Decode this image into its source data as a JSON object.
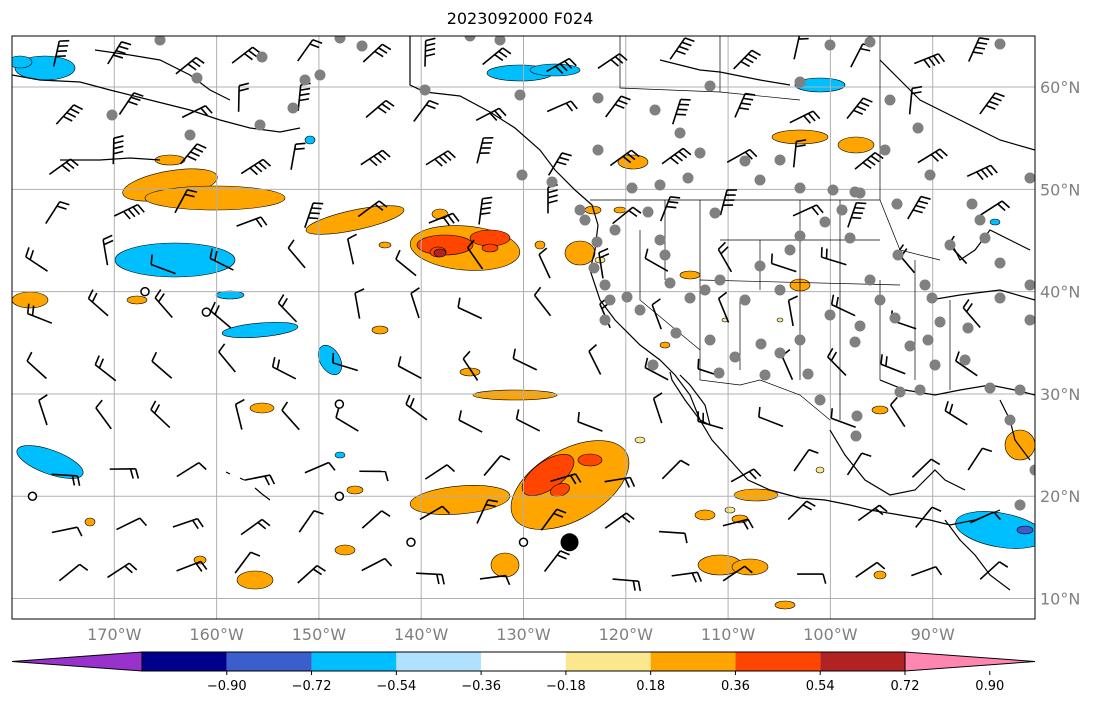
{
  "title": "2023092000 F024",
  "lon_labels": [
    "170°W",
    "160°W",
    "150°W",
    "140°W",
    "130°W",
    "120°W",
    "110°W",
    "100°W",
    "90°W"
  ],
  "lat_labels": [
    "60°N",
    "50°N",
    "40°N",
    "30°N",
    "20°N",
    "10°N"
  ],
  "colorbar": {
    "colors": [
      "#9932CC",
      "#00008B",
      "#3A5FCD",
      "#00BFFF",
      "#B0E2FF",
      "#FFFFFF",
      "#FBE78D",
      "#FFA500",
      "#FF4500",
      "#B22222",
      "#FF86B0"
    ],
    "labels": [
      "−0.90",
      "−0.72",
      "−0.54",
      "−0.36",
      "−0.18",
      "0.18",
      "0.36",
      "0.54",
      "0.72",
      "0.90"
    ]
  },
  "stations": {
    "land_color": "#808080",
    "highlight": {
      "lon": -125.5,
      "lat": 15.5
    },
    "open_circles": [
      [
        -161,
        38.0
      ],
      [
        -167,
        40.0
      ],
      [
        -148,
        29.0
      ],
      [
        -148,
        20.0
      ],
      [
        -141,
        15.5
      ],
      [
        -130,
        15.5
      ],
      [
        -178,
        20.0
      ]
    ]
  },
  "colors": {
    "orange": "#FFA500",
    "red": "#FF4500",
    "darkred": "#B22222",
    "yellow": "#FBE78D",
    "cyan": "#00BFFF",
    "lightblue": "#B0E2FF",
    "blue": "#3A5FCD"
  }
}
